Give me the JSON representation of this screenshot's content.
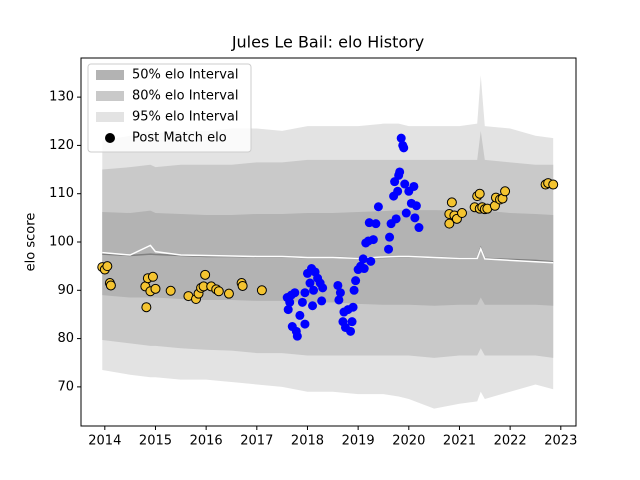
{
  "chart_data": {
    "type": "elo",
    "title": "Jules Le Bail: elo History",
    "y_label": "elo score",
    "xlim": [
      2013.53,
      2023.3
    ],
    "ylim": [
      61.9,
      138.1
    ],
    "xticks": [
      2014,
      2015,
      2016,
      2017,
      2018,
      2019,
      2020,
      2021,
      2022,
      2023
    ],
    "yticks": [
      70,
      80,
      90,
      100,
      110,
      120,
      130
    ],
    "legend": "upper left",
    "x": [
      2013.95,
      2014.5,
      2014.9,
      2015.0,
      2015.5,
      2016,
      2016.5,
      2017,
      2017.5,
      2018,
      2018.5,
      2019,
      2019.5,
      2019.8,
      2020,
      2020.5,
      2021,
      2021.35,
      2021.42,
      2021.5,
      2022,
      2022.5,
      2022.85
    ],
    "bands": [
      {
        "name": "50% elo Interval",
        "color": "#b3b3b3",
        "upper": [
          106.2,
          106,
          106.5,
          106,
          105.8,
          105.6,
          105.6,
          105.8,
          105.8,
          106,
          106,
          106.2,
          106.4,
          106.6,
          106.6,
          106.6,
          106.5,
          106.5,
          109.7,
          106.5,
          106,
          105.8,
          105.6
        ],
        "lower": [
          89,
          88.5,
          88.5,
          88.5,
          88.2,
          88,
          88,
          87.8,
          87.8,
          87.5,
          87.5,
          87.2,
          87,
          87,
          87,
          86.8,
          87,
          87,
          88.5,
          87,
          87,
          87,
          86.8
        ]
      },
      {
        "name": "80% elo Interval",
        "color": "#c9c9c9",
        "upper": [
          115,
          115.5,
          116,
          115.5,
          116,
          116,
          116,
          116.5,
          116.5,
          117,
          117,
          117,
          117,
          117,
          117,
          117,
          117,
          117,
          123,
          117,
          116.5,
          116,
          116
        ],
        "lower": [
          79.7,
          79,
          78.5,
          78.5,
          78,
          77.7,
          77.5,
          77,
          77,
          76.5,
          76.5,
          76.5,
          76.5,
          76.5,
          76.5,
          76,
          76.5,
          76.5,
          78,
          76.5,
          76.5,
          76.5,
          76
        ]
      },
      {
        "name": "95% elo Interval",
        "color": "#e3e3e3",
        "upper": [
          121,
          122,
          123,
          122.5,
          123,
          123,
          123.5,
          123.5,
          123,
          124,
          124,
          124,
          124.5,
          124.5,
          124,
          124,
          124,
          124.5,
          134.5,
          124,
          123.5,
          122,
          121.5
        ],
        "lower": [
          73.5,
          72.5,
          72,
          72,
          71.5,
          71.5,
          71,
          70.5,
          70,
          69,
          69,
          68.5,
          68.5,
          68,
          67.5,
          65.5,
          66.5,
          67,
          69,
          67.5,
          69,
          70.5,
          69.5
        ]
      }
    ],
    "lines": [
      {
        "color": "#808080",
        "values": [
          97.5,
          97.2,
          97.5,
          97.4,
          97.2,
          97,
          97,
          96.9,
          96.9,
          96.8,
          96.8,
          96.7,
          96.8,
          96.9,
          96.9,
          96.8,
          96.7,
          96.7,
          98.8,
          96.6,
          96.4,
          96.2,
          95.9
        ]
      },
      {
        "color": "#ffffff",
        "values": [
          97.8,
          97.3,
          99.3,
          98,
          97.3,
          97.2,
          97.1,
          97,
          97,
          96.8,
          96.8,
          96.6,
          96.9,
          97,
          97,
          96.8,
          96.6,
          96.6,
          98.6,
          96.5,
          96.2,
          95.9,
          95.7
        ]
      }
    ],
    "scatter": {
      "name": "Post Match elo",
      "legend_color": "#000000",
      "groups": [
        {
          "color": "#f4c430",
          "edge": "#000000",
          "x": [
            2013.95,
            2014.0,
            2014.05,
            2014.1,
            2014.12,
            2014.8,
            2014.82,
            2014.85,
            2014.9,
            2014.95,
            2015.0,
            2015.3,
            2015.65,
            2015.8,
            2015.85,
            2015.9,
            2015.95,
            2015.98,
            2016.1,
            2016.2,
            2016.25,
            2016.45,
            2016.7,
            2016.72,
            2017.1,
            2020.8,
            2020.8,
            2020.85,
            2020.9,
            2020.95,
            2021.05,
            2021.3,
            2021.35,
            2021.4,
            2021.4,
            2021.45,
            2021.5,
            2021.55,
            2021.7,
            2021.72,
            2021.8,
            2021.85,
            2021.9,
            2022.7,
            2022.75,
            2022.85
          ],
          "values": [
            94.8,
            94.3,
            95,
            91.5,
            91,
            90.8,
            86.5,
            92.5,
            89.8,
            92.8,
            90.3,
            89.9,
            88.8,
            88.2,
            89.3,
            90.5,
            90.8,
            93.2,
            90.8,
            90.2,
            89.8,
            89.3,
            91.5,
            90.9,
            90,
            103.8,
            105.8,
            108.2,
            105.5,
            104.8,
            106,
            107.2,
            109.5,
            110,
            106.9,
            107.2,
            106.8,
            106.9,
            107.5,
            109.2,
            108.8,
            109,
            110.5,
            111.9,
            112.2,
            111.9
          ]
        },
        {
          "color": "#0000ff",
          "x": [
            2017.6,
            2017.62,
            2017.65,
            2017.68,
            2017.7,
            2017.75,
            2017.78,
            2017.8,
            2017.85,
            2017.9,
            2017.95,
            2017.95,
            2018.0,
            2018.05,
            2018.08,
            2018.1,
            2018.12,
            2018.15,
            2018.2,
            2018.25,
            2018.28,
            2018.3,
            2018.6,
            2018.62,
            2018.65,
            2018.7,
            2018.72,
            2018.75,
            2018.8,
            2018.85,
            2018.88,
            2018.9,
            2018.92,
            2018.95,
            2019.0,
            2019.05,
            2019.1,
            2019.12,
            2019.15,
            2019.2,
            2019.22,
            2019.25,
            2019.3,
            2019.35,
            2019.4,
            2019.6,
            2019.62,
            2019.65,
            2019.7,
            2019.72,
            2019.75,
            2019.78,
            2019.8,
            2019.82,
            2019.85,
            2019.88,
            2019.9,
            2019.92,
            2019.95,
            2020.0,
            2020.05,
            2020.1,
            2020.12,
            2020.15,
            2020.2
          ],
          "values": [
            88.5,
            86,
            87.5,
            89,
            82.5,
            89.5,
            81.5,
            80.5,
            84.8,
            87.5,
            89.5,
            83,
            93.5,
            91.5,
            94.5,
            86.8,
            90,
            93.8,
            92.5,
            91.5,
            87.8,
            90.5,
            91,
            88,
            89.5,
            83.5,
            85.5,
            82.3,
            86,
            81.5,
            83.5,
            86.5,
            90,
            92,
            94.3,
            95,
            96.5,
            94.5,
            99.8,
            100.2,
            104,
            96,
            100.5,
            103.8,
            107.3,
            98.5,
            101,
            103.8,
            109.5,
            112.5,
            104.8,
            110.5,
            113.8,
            114.5,
            121.5,
            120,
            119.5,
            112,
            106,
            110.5,
            108,
            111.5,
            105,
            107.5,
            103
          ]
        }
      ]
    }
  }
}
